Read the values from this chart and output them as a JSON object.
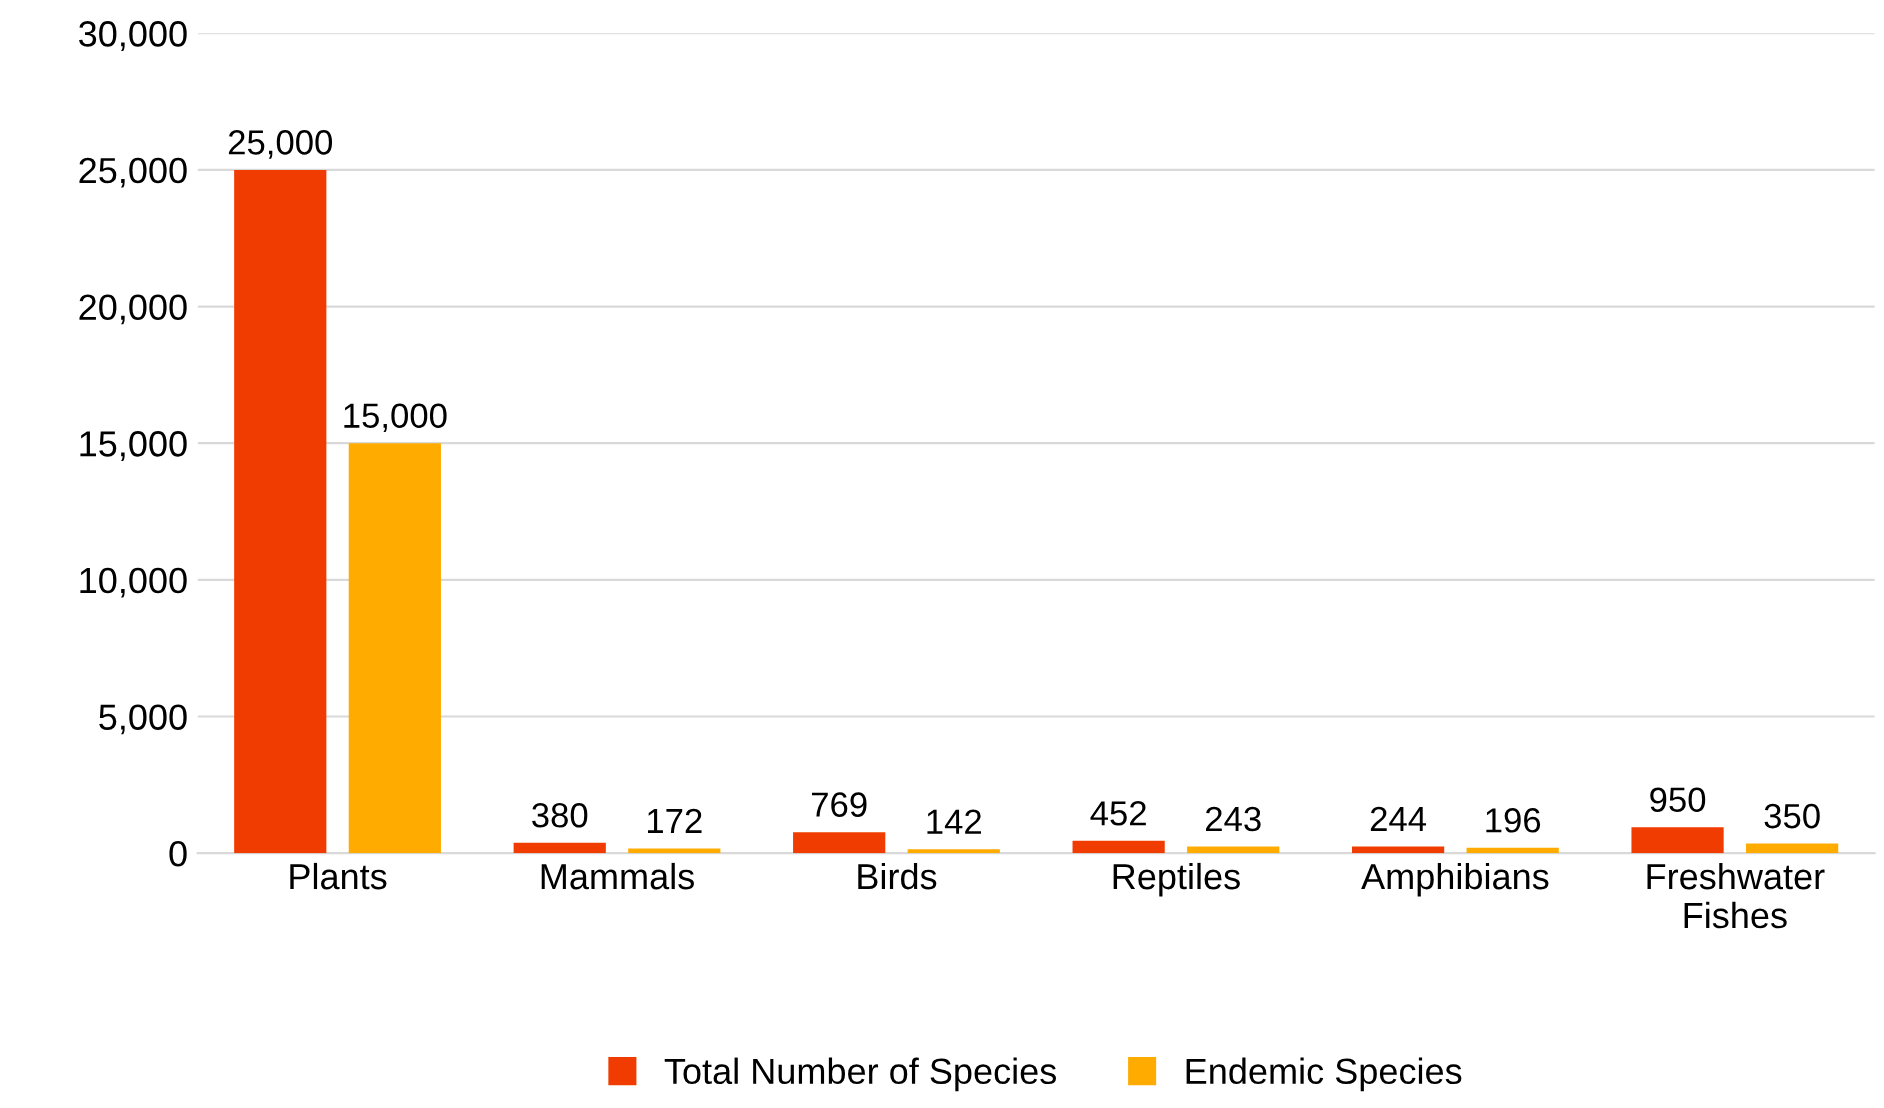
{
  "chart_data": {
    "type": "bar",
    "categories": [
      "Plants",
      "Mammals",
      "Birds",
      "Reptiles",
      "Amphibians",
      "Freshwater\nFishes"
    ],
    "series": [
      {
        "name": "Total Number of Species",
        "color": "#f03c00",
        "values": [
          25000,
          380,
          769,
          452,
          244,
          950
        ],
        "value_labels": [
          "25,000",
          "380",
          "769",
          "452",
          "244",
          "950"
        ]
      },
      {
        "name": "Endemic Species",
        "color": "#ffab00",
        "values": [
          15000,
          172,
          142,
          243,
          196,
          350
        ],
        "value_labels": [
          "15,000",
          "172",
          "142",
          "243",
          "196",
          "350"
        ]
      }
    ],
    "ylim": [
      0,
      30000
    ],
    "yticks": [
      {
        "value": 0,
        "label": "0"
      },
      {
        "value": 5000,
        "label": "5,000"
      },
      {
        "value": 10000,
        "label": "10,000"
      },
      {
        "value": 15000,
        "label": "15,000"
      },
      {
        "value": 20000,
        "label": "20,000"
      },
      {
        "value": 25000,
        "label": "25,000"
      },
      {
        "value": 30000,
        "label": "30,000"
      }
    ],
    "grid": "y",
    "legend": "bottom"
  }
}
